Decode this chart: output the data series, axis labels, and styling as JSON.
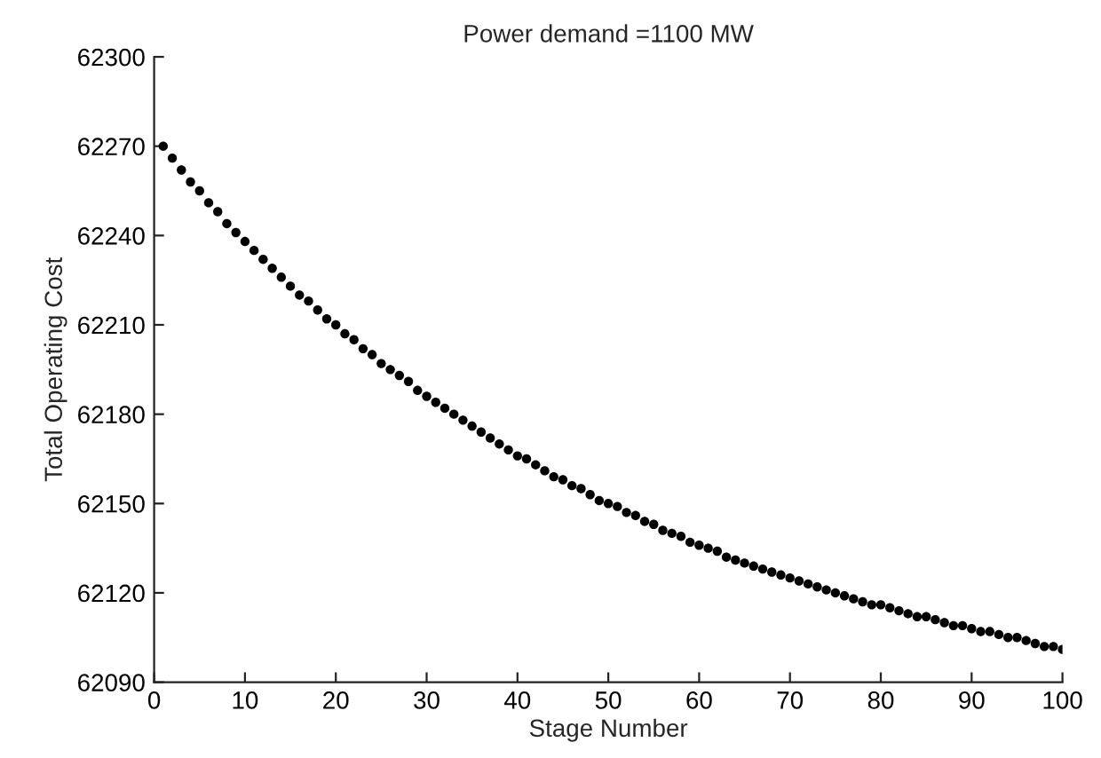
{
  "chart_data": {
    "type": "scatter",
    "title": "Power demand =1100 MW",
    "xlabel": "Stage Number",
    "ylabel": "Total Operating Cost",
    "x": [
      1,
      2,
      3,
      4,
      5,
      6,
      7,
      8,
      9,
      10,
      11,
      12,
      13,
      14,
      15,
      16,
      17,
      18,
      19,
      20,
      21,
      22,
      23,
      24,
      25,
      26,
      27,
      28,
      29,
      30,
      31,
      32,
      33,
      34,
      35,
      36,
      37,
      38,
      39,
      40,
      41,
      42,
      43,
      44,
      45,
      46,
      47,
      48,
      49,
      50,
      51,
      52,
      53,
      54,
      55,
      56,
      57,
      58,
      59,
      60,
      61,
      62,
      63,
      64,
      65,
      66,
      67,
      68,
      69,
      70,
      71,
      72,
      73,
      74,
      75,
      76,
      77,
      78,
      79,
      80,
      81,
      82,
      83,
      84,
      85,
      86,
      87,
      88,
      89,
      90,
      91,
      92,
      93,
      94,
      95,
      96,
      97,
      98,
      99,
      100
    ],
    "series": [
      {
        "color": "#000000",
        "values": [
          62270,
          62266,
          62262,
          62258,
          62255,
          62251,
          62248,
          62244,
          62241,
          62238,
          62235,
          62232,
          62229,
          62226,
          62223,
          62220,
          62218,
          62215,
          62212,
          62210,
          62207,
          62205,
          62202,
          62200,
          62197,
          62195,
          62193,
          62191,
          62188,
          62186,
          62184,
          62182,
          62180,
          62178,
          62176,
          62174,
          62172,
          62170,
          62168,
          62166,
          62165,
          62163,
          62161,
          62159,
          62158,
          62156,
          62155,
          62153,
          62151,
          62150,
          62149,
          62147,
          62146,
          62144,
          62143,
          62141,
          62140,
          62139,
          62137,
          62136,
          62135,
          62134,
          62132,
          62131,
          62130,
          62129,
          62128,
          62127,
          62126,
          62125,
          62124,
          62123,
          62122,
          62121,
          62120,
          62119,
          62118,
          62117,
          62116,
          62116,
          62115,
          62114,
          62113,
          62112,
          62112,
          62111,
          62110,
          62109,
          62109,
          62108,
          62107,
          62107,
          62106,
          62105,
          62105,
          62104,
          62103,
          62102,
          62102,
          62101
        ]
      }
    ],
    "xlim": [
      0,
      100
    ],
    "xticks": [
      0,
      10,
      20,
      30,
      40,
      50,
      60,
      70,
      80,
      90,
      100
    ],
    "ylim": [
      62090,
      62300
    ],
    "yticks": [
      62090,
      62120,
      62150,
      62180,
      62210,
      62240,
      62270,
      62300
    ],
    "marker": "circle",
    "grid": false,
    "legend": false
  }
}
